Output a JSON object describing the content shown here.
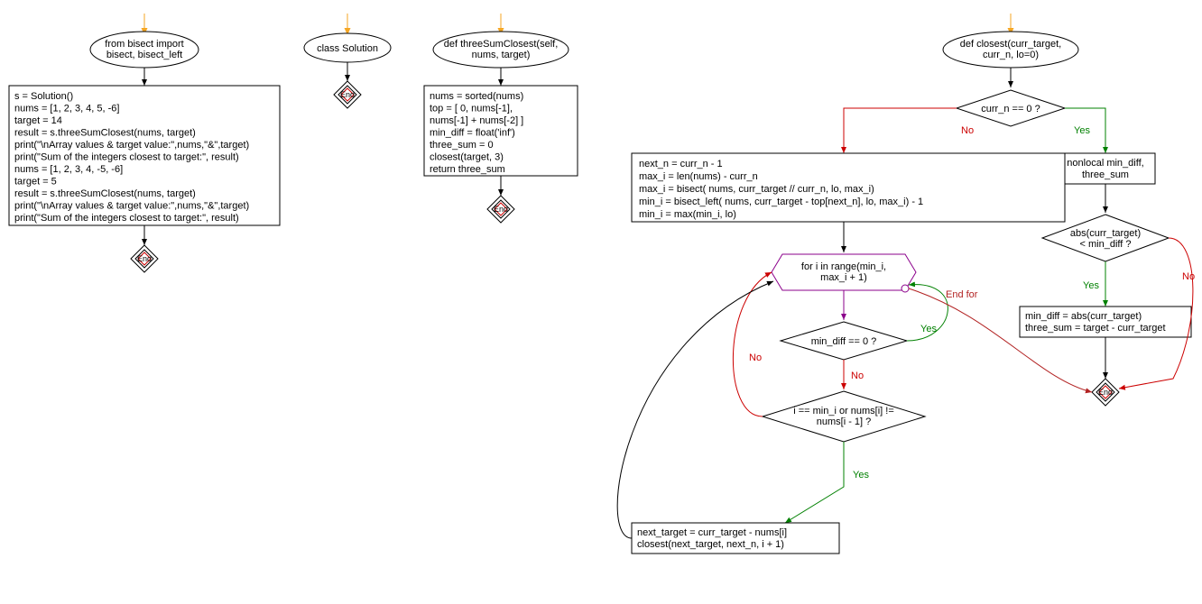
{
  "colors": {
    "stroke": "#000000",
    "box_fill": "#ffffff",
    "entry_arrow": "#f5a623",
    "end_inner": "#cc0000",
    "yes_edge": "#008000",
    "no_edge": "#cc0000",
    "loop_edge": "#8b008b",
    "endfor_edge": "#b22222",
    "background": "#ffffff"
  },
  "fontsize": 11,
  "module1": {
    "ellipse_lines": [
      "from bisect import",
      "bisect, bisect_left"
    ],
    "box_lines": [
      "s = Solution()",
      "nums = [1, 2, 3, 4, 5, -6]",
      "target = 14",
      "result = s.threeSumClosest(nums, target)",
      "print(\"\\nArray values & target value:\",nums,\"&\",target)",
      "print(\"Sum of the integers closest to target:\", result)",
      "nums = [1, 2, 3, 4, -5, -6]",
      "target = 5",
      "result = s.threeSumClosest(nums, target)",
      "print(\"\\nArray values & target value:\",nums,\"&\",target)",
      "print(\"Sum of the integers closest to target:\", result)"
    ],
    "end": "End"
  },
  "module2": {
    "ellipse": "class Solution",
    "end": "End"
  },
  "module3": {
    "ellipse_lines": [
      "def threeSumClosest(self,",
      "nums, target)"
    ],
    "box_lines": [
      "nums = sorted(nums)",
      "top = [            0,            nums[-1],",
      "nums[-1] + nums[-2]        ]",
      "min_diff = float('inf')",
      "three_sum = 0",
      "closest(target, 3)",
      "return three_sum"
    ],
    "end": "End"
  },
  "module4": {
    "ellipse_lines": [
      "def closest(curr_target,",
      "curr_n, lo=0)"
    ],
    "decision1": "curr_n == 0 ?",
    "yes": "Yes",
    "no": "No",
    "no_box_lines": [
      "next_n = curr_n - 1",
      "max_i = len(nums) - curr_n",
      "max_i = bisect(             nums, curr_target // curr_n,             lo, max_i)",
      "min_i = bisect_left(             nums, curr_target - top[next_n],             lo, max_i) - 1",
      "min_i = max(min_i, lo)"
    ],
    "yes_box_lines": [
      "nonlocal min_diff,",
      "three_sum"
    ],
    "decision2_lines": [
      "abs(curr_target)",
      "< min_diff ?"
    ],
    "yes2_box_lines": [
      "min_diff = abs(curr_target)",
      "three_sum = target - curr_target"
    ],
    "loop_lines": [
      "for i in range(min_i,",
      "max_i + 1)"
    ],
    "endfor": "End for",
    "decision3": "min_diff == 0 ?",
    "decision4_lines": [
      "i == min_i or nums[i] !=",
      "nums[i - 1] ?"
    ],
    "bottom_box_lines": [
      "next_target = curr_target - nums[i]",
      "closest(next_target, next_n, i + 1)"
    ],
    "end": "End"
  }
}
